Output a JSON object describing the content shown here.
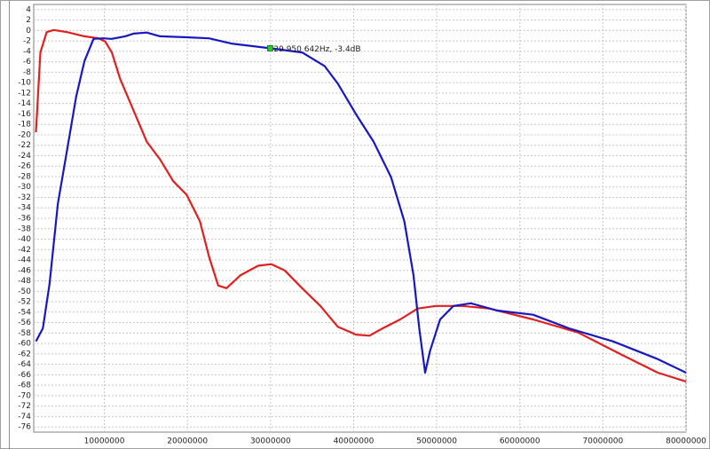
{
  "chart_data": {
    "type": "line",
    "xlim": [
      1500000,
      80000000
    ],
    "ylim": [
      -77,
      5
    ],
    "xticks": [
      10000000,
      20000000,
      30000000,
      40000000,
      50000000,
      60000000,
      70000000,
      80000000
    ],
    "yticks": [
      4,
      2,
      0,
      -2,
      -4,
      -6,
      -8,
      -10,
      -12,
      -14,
      -16,
      -18,
      -20,
      -22,
      -24,
      -26,
      -28,
      -30,
      -32,
      -34,
      -36,
      -38,
      -40,
      -42,
      -44,
      -46,
      -48,
      -50,
      -52,
      -54,
      -56,
      -58,
      -60,
      -62,
      -64,
      -66,
      -68,
      -70,
      -72,
      -74,
      -76
    ],
    "grid": true,
    "series": [
      {
        "color": "#e02020",
        "x": [
          1770000,
          2300000,
          3060000,
          3900000,
          5500000,
          7600000,
          9300000,
          10100000,
          10900000,
          11900000,
          13500000,
          15100000,
          16700000,
          18300000,
          19900000,
          21500000,
          22600000,
          23700000,
          24700000,
          26400000,
          28500000,
          30100000,
          31700000,
          33800000,
          36000000,
          38100000,
          40300000,
          41900000,
          43500000,
          45600000,
          47700000,
          49900000,
          53100000,
          56300000,
          61600000,
          67000000,
          72300000,
          76600000,
          80000000
        ],
        "values": [
          -19.5,
          -4.2,
          -0.3,
          0.1,
          -0.3,
          -1.1,
          -1.5,
          -2.1,
          -4.2,
          -9.3,
          -15.3,
          -21.3,
          -24.7,
          -28.9,
          -31.5,
          -36.6,
          -43.4,
          -48.9,
          -49.4,
          -46.9,
          -45.1,
          -44.8,
          -46,
          -49.4,
          -52.8,
          -56.8,
          -58.3,
          -58.5,
          -57.1,
          -55.4,
          -53.3,
          -52.8,
          -52.8,
          -53.3,
          -55.4,
          -57.9,
          -62.2,
          -65.6,
          -67.3
        ]
      },
      {
        "color": "#1818c0",
        "x": [
          1770000,
          2600000,
          3400000,
          4400000,
          5500000,
          6600000,
          7600000,
          8700000,
          9800000,
          10900000,
          12500000,
          13500000,
          15100000,
          16700000,
          19900000,
          22600000,
          25300000,
          29950642,
          33800000,
          36500000,
          38100000,
          40300000,
          42400000,
          44500000,
          46100000,
          47200000,
          47900000,
          48600000,
          49200000,
          50400000,
          52000000,
          54100000,
          57300000,
          61600000,
          65900000,
          71200000,
          76600000,
          80000000
        ],
        "values": [
          -59.6,
          -57.1,
          -48.6,
          -33.2,
          -23,
          -12.7,
          -5.9,
          -1.6,
          -1.5,
          -1.6,
          -1.1,
          -0.6,
          -0.4,
          -1.1,
          -1.3,
          -1.5,
          -2.5,
          -3.4,
          -4.2,
          -6.8,
          -10.2,
          -16.1,
          -21.3,
          -28.1,
          -36.6,
          -46.9,
          -57.1,
          -65.6,
          -61.4,
          -55.4,
          -52.8,
          -52.3,
          -53.7,
          -54.5,
          -57.1,
          -59.6,
          -63,
          -65.6
        ]
      }
    ],
    "annotation": {
      "text": "29 950 642Hz, -3.4dB",
      "x": 29950642,
      "y": -3.4,
      "color": "#22cc22"
    }
  }
}
